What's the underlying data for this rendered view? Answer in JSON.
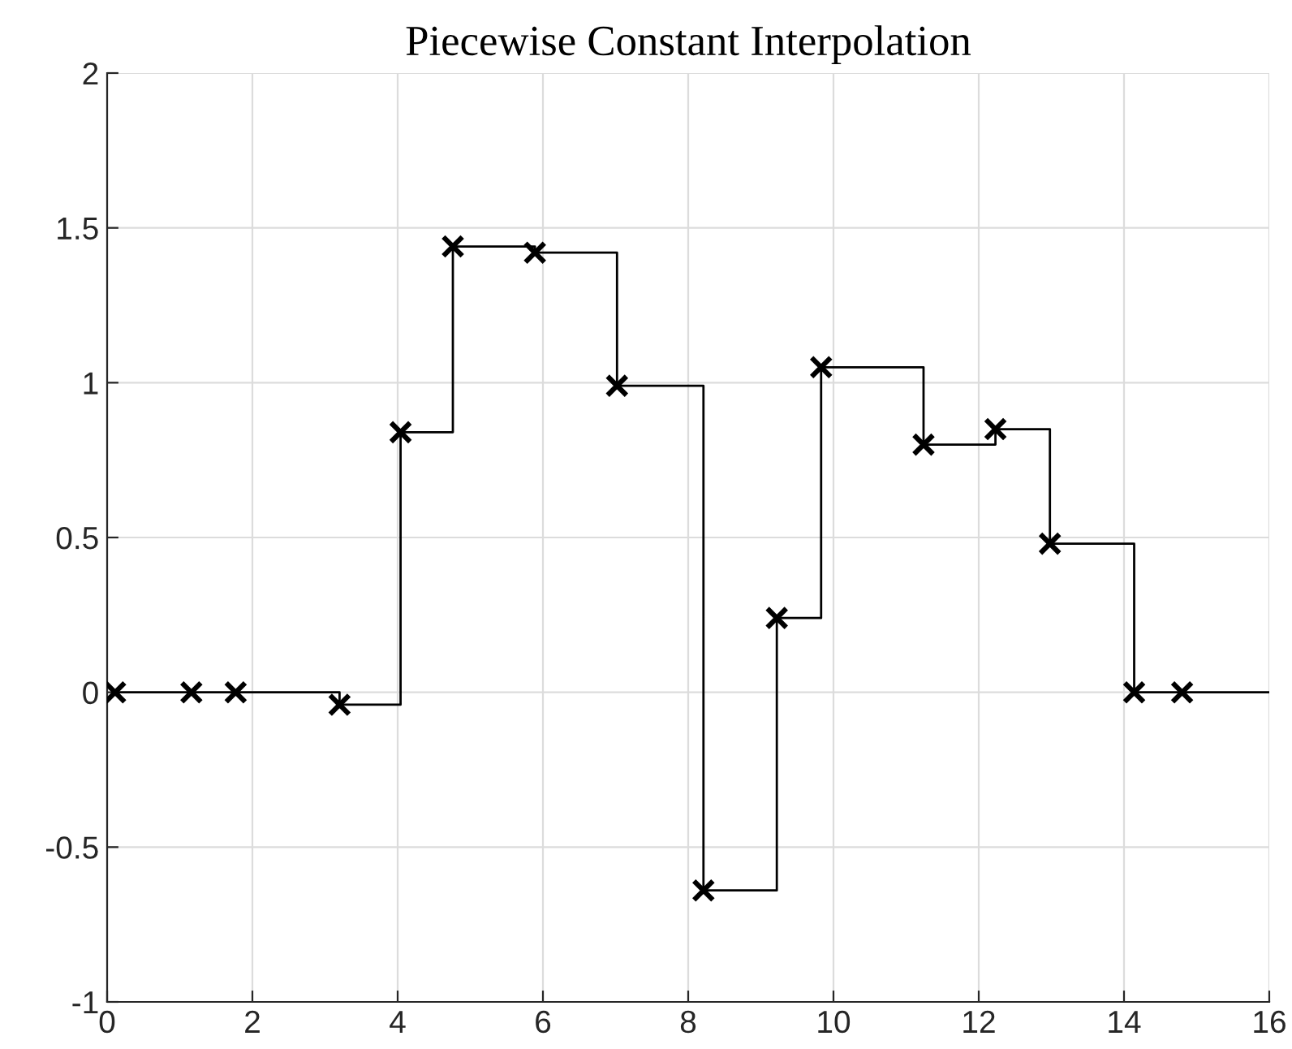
{
  "chart_data": {
    "type": "step",
    "title": "Piecewise Constant Interpolation",
    "series": [
      {
        "color": "#000000",
        "x": [
          0.11,
          1.16,
          1.77,
          3.2,
          4.04,
          4.76,
          5.89,
          7.02,
          8.21,
          9.22,
          9.83,
          11.24,
          12.23,
          12.98,
          14.14,
          14.8,
          16
        ],
        "values": [
          0,
          0,
          0,
          -0.04,
          0.84,
          1.44,
          1.42,
          0.99,
          -0.64,
          0.24,
          1.05,
          0.8,
          0.85,
          0.48,
          0,
          0,
          0
        ],
        "marker": "none"
      },
      {
        "type": "scatter",
        "color": "#000000",
        "x": [
          0.11,
          1.16,
          1.77,
          3.2,
          4.04,
          4.76,
          5.89,
          7.02,
          8.21,
          9.22,
          9.83,
          11.24,
          12.23,
          12.98,
          14.14,
          14.8
        ],
        "values": [
          0,
          0,
          0,
          -0.04,
          0.84,
          1.44,
          1.42,
          0.99,
          -0.64,
          0.24,
          1.05,
          0.8,
          0.85,
          0.48,
          0,
          0
        ],
        "marker": "cross"
      }
    ],
    "xlim": [
      0,
      16
    ],
    "ylim": [
      -1,
      2
    ],
    "xticks": [
      0,
      2,
      4,
      6,
      8,
      10,
      12,
      14,
      16
    ],
    "yticks": [
      -1,
      -0.5,
      0,
      0.5,
      1,
      1.5,
      2
    ],
    "grid": true
  }
}
